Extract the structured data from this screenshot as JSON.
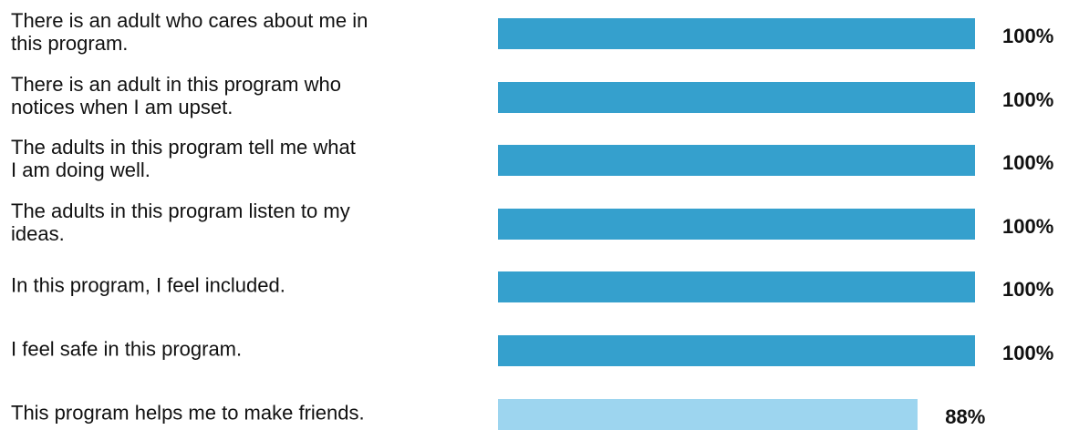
{
  "chart_data": {
    "type": "hbar",
    "categories": [
      "There is an adult who cares about me in\nthis program.",
      "There is an adult in this program who\nnotices when I am upset.",
      "The adults in this program tell me what\nI am doing well.",
      "The adults in this program listen to my\nideas.",
      "In this program, I feel included.",
      "I feel safe in this program.",
      "This program helps me to make friends."
    ],
    "values": [
      100,
      100,
      100,
      100,
      100,
      100,
      88
    ],
    "value_labels": [
      "100%",
      "100%",
      "100%",
      "100%",
      "100%",
      "100%",
      "88%"
    ],
    "colors": [
      "#35a0cd",
      "#35a0cd",
      "#35a0cd",
      "#35a0cd",
      "#35a0cd",
      "#35a0cd",
      "#9dd5ef"
    ],
    "xlim": [
      0,
      100
    ]
  }
}
